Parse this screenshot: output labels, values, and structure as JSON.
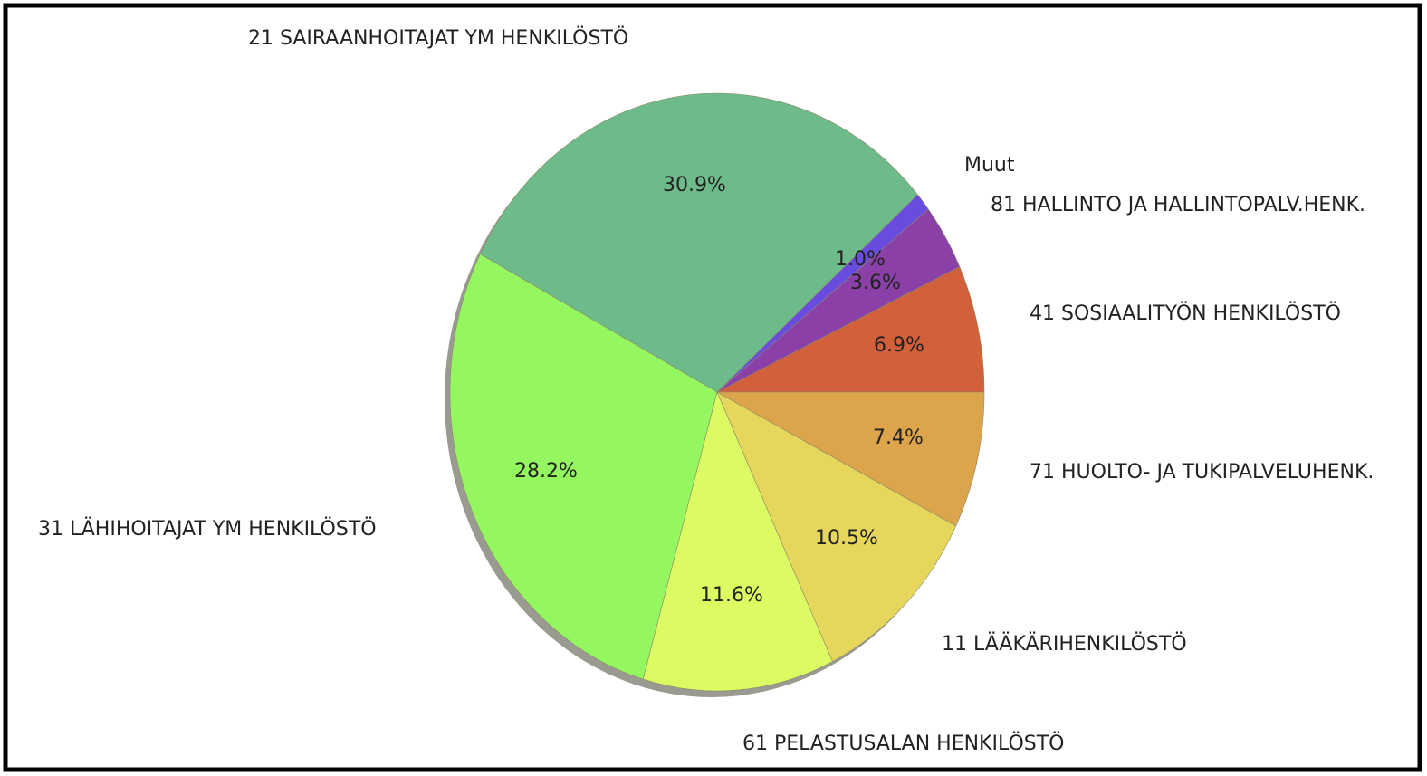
{
  "chart_data": {
    "type": "pie",
    "categories": [
      "41 SOSIAALITYÖN HENKILÖSTÖ",
      "81 HALLINTO JA HALLINTOPALV.HENK.",
      "Muut",
      "21 SAIRAANHOITAJAT YM HENKILÖSTÖ",
      "31 LÄHIHOITAJAT YM HENKILÖSTÖ",
      "61 PELASTUSALAN HENKILÖSTÖ",
      "11 LÄÄKÄRIHENKILÖSTÖ",
      "71 HUOLTO- JA TUKIPALVELUHENK."
    ],
    "values": [
      6.9,
      3.6,
      1.0,
      30.9,
      28.2,
      11.6,
      10.5,
      7.4
    ],
    "value_labels": [
      "6.9%",
      "3.6%",
      "1.0%",
      "30.9%",
      "28.2%",
      "11.6%",
      "10.5%",
      "7.4%"
    ],
    "colors": [
      "#d2603a",
      "#8b40a8",
      "#6a4be0",
      "#6dbb8a",
      "#95f75f",
      "#dcfb62",
      "#e6d65c",
      "#dca54c"
    ]
  }
}
